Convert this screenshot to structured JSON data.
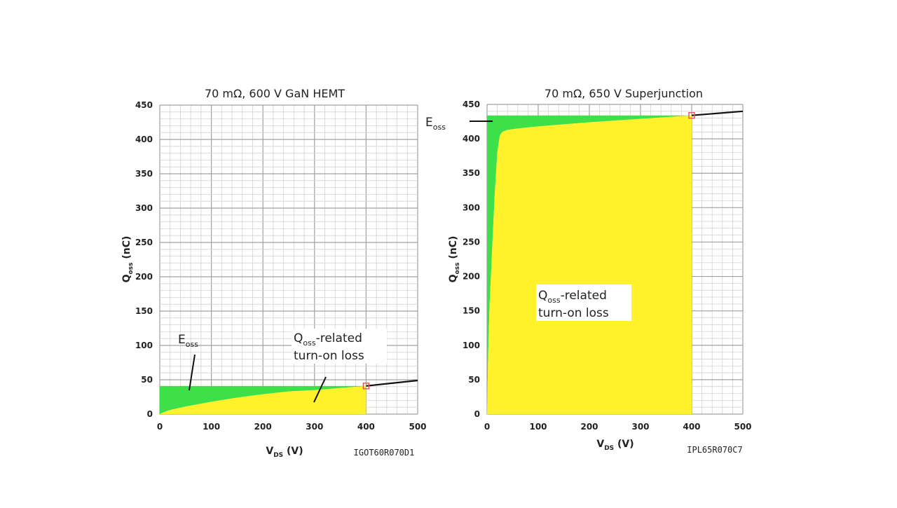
{
  "colors": {
    "grid_minor": "#d2d2d2",
    "grid_major": "#a0a0a0",
    "eoss_area": "#3ee04a",
    "qoss_area": "#fff12a",
    "curve": "#111111",
    "marker": "#e05555"
  },
  "annotations": {
    "eoss_main": "E",
    "eoss_sub": "oss",
    "qoss_main": "Q",
    "qoss_sub": "oss",
    "qoss_rest": "-related",
    "qoss_line2": "turn-on loss"
  },
  "chart_data": [
    {
      "type": "area",
      "title": "70 mΩ, 600 V GaN HEMT",
      "part_number": "IGOT60R070D1",
      "xlabel_main": "V",
      "xlabel_sub": "DS",
      "xlabel_unit": " (V)",
      "ylabel_main": "Q",
      "ylabel_sub": "oss",
      "ylabel_unit": " (nC)",
      "xlim": [
        0,
        500
      ],
      "ylim": [
        0,
        450
      ],
      "x_ticks": [
        "0",
        "100",
        "200",
        "300",
        "400",
        "500"
      ],
      "y_ticks": [
        "0",
        "50",
        "100",
        "150",
        "200",
        "250",
        "300",
        "350",
        "400",
        "450"
      ],
      "qoss_curve": {
        "x": [
          0,
          5,
          20,
          50,
          100,
          150,
          200,
          250,
          300,
          350,
          400,
          450,
          500
        ],
        "y": [
          0,
          2,
          6,
          11,
          18,
          24,
          29,
          33,
          35,
          38,
          41,
          45,
          49
        ]
      },
      "qoss_at_400v": 41,
      "operating_point": {
        "x": 400,
        "y": 41
      }
    },
    {
      "type": "area",
      "title": "70 mΩ, 650 V Superjunction",
      "part_number": "IPL65R070C7",
      "xlabel_main": "V",
      "xlabel_sub": "DS",
      "xlabel_unit": " (V)",
      "ylabel_main": "Q",
      "ylabel_sub": "oss",
      "ylabel_unit": " (nC)",
      "xlim": [
        0,
        500
      ],
      "ylim": [
        0,
        450
      ],
      "x_ticks": [
        "0",
        "100",
        "200",
        "300",
        "400",
        "500"
      ],
      "y_ticks": [
        "0",
        "50",
        "100",
        "150",
        "200",
        "250",
        "300",
        "350",
        "400",
        "450"
      ],
      "qoss_curve": {
        "x": [
          0,
          2,
          5,
          10,
          15,
          20,
          25,
          30,
          40,
          60,
          100,
          200,
          300,
          400,
          500
        ],
        "y": [
          0,
          80,
          160,
          240,
          320,
          380,
          405,
          410,
          413,
          415,
          418,
          424,
          429,
          434,
          440
        ]
      },
      "qoss_at_400v": 434,
      "operating_point": {
        "x": 400,
        "y": 434
      }
    }
  ]
}
